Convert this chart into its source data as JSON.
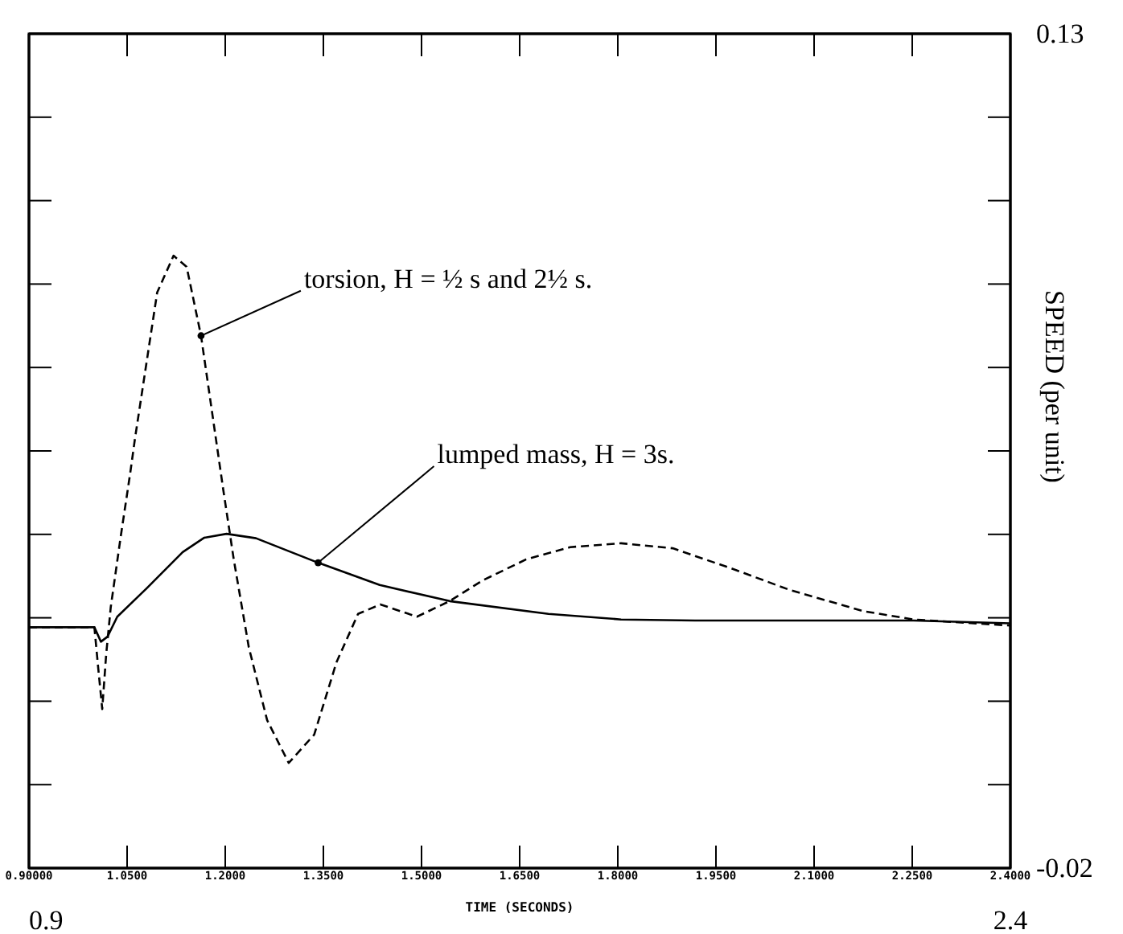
{
  "chart_data": {
    "type": "line",
    "xlabel": "TIME (SECONDS)",
    "ylabel": "SPEED (per unit)",
    "xlim": [
      0.9,
      2.4
    ],
    "ylim": [
      -0.02,
      0.13
    ],
    "xticks": [
      {
        "value": 0.9,
        "label": "0.90000"
      },
      {
        "value": 1.05,
        "label": "1.0500"
      },
      {
        "value": 1.2,
        "label": "1.2000"
      },
      {
        "value": 1.35,
        "label": "1.3500"
      },
      {
        "value": 1.5,
        "label": "1.5000"
      },
      {
        "value": 1.65,
        "label": "1.6500"
      },
      {
        "value": 1.8,
        "label": "1.8000"
      },
      {
        "value": 1.95,
        "label": "1.9500"
      },
      {
        "value": 2.1,
        "label": "2.1000"
      },
      {
        "value": 2.25,
        "label": "2.2500"
      },
      {
        "value": 2.4,
        "label": "2.4000"
      }
    ],
    "yticks": [
      -0.02,
      {
        "value": -0.005,
        "label": null
      },
      {
        "value": 0.01,
        "label": null
      },
      {
        "value": 0.025,
        "label": null
      },
      {
        "value": 0.04,
        "label": null
      },
      {
        "value": 0.055,
        "label": null
      },
      {
        "value": 0.07,
        "label": null
      },
      {
        "value": 0.085,
        "label": null
      },
      {
        "value": 0.1,
        "label": null
      },
      {
        "value": 0.115,
        "label": null
      },
      0.13
    ],
    "grid": false,
    "series": [
      {
        "color": "#000000",
        "line_style": "dashed",
        "x": [
          0.9,
          1.0,
          1.006,
          1.012,
          1.018,
          1.025,
          1.04,
          1.055,
          1.062,
          1.096,
          1.121,
          1.141,
          1.163,
          1.197,
          1.213,
          1.236,
          1.264,
          1.297,
          1.336,
          1.37,
          1.403,
          1.437,
          1.493,
          1.543,
          1.593,
          1.66,
          1.727,
          1.805,
          1.884,
          1.973,
          2.063,
          2.175,
          2.252,
          2.4
        ],
        "values": [
          0.0233,
          0.0233,
          0.0158,
          0.0086,
          0.0184,
          0.0269,
          0.0394,
          0.0512,
          0.0572,
          0.0835,
          0.0901,
          0.0881,
          0.0757,
          0.048,
          0.0355,
          0.0197,
          0.0066,
          -0.0011,
          0.004,
          0.017,
          0.0257,
          0.0274,
          0.0252,
          0.028,
          0.0317,
          0.0355,
          0.0377,
          0.0384,
          0.0375,
          0.0339,
          0.03,
          0.0262,
          0.0247,
          0.0236
        ]
      },
      {
        "color": "#000000",
        "line_style": "solid",
        "x": [
          0.9,
          1.0,
          1.01,
          1.02,
          1.035,
          1.08,
          1.135,
          1.168,
          1.202,
          1.247,
          1.342,
          1.436,
          1.543,
          1.694,
          1.805,
          1.918,
          2.085,
          2.252,
          2.4
        ],
        "values": [
          0.0233,
          0.0233,
          0.0207,
          0.0216,
          0.0252,
          0.0303,
          0.0368,
          0.0394,
          0.0401,
          0.0393,
          0.0349,
          0.0309,
          0.028,
          0.0257,
          0.0247,
          0.0245,
          0.0245,
          0.0245,
          0.024
        ]
      }
    ],
    "annotations": [
      {
        "text": "torsion, H = ½ s and 2½ s.",
        "x": 1.163,
        "y": 0.0757
      },
      {
        "text": "lumped mass, H = 3s.",
        "x": 1.342,
        "y": 0.0349
      },
      "0.9",
      "2.4"
    ]
  }
}
